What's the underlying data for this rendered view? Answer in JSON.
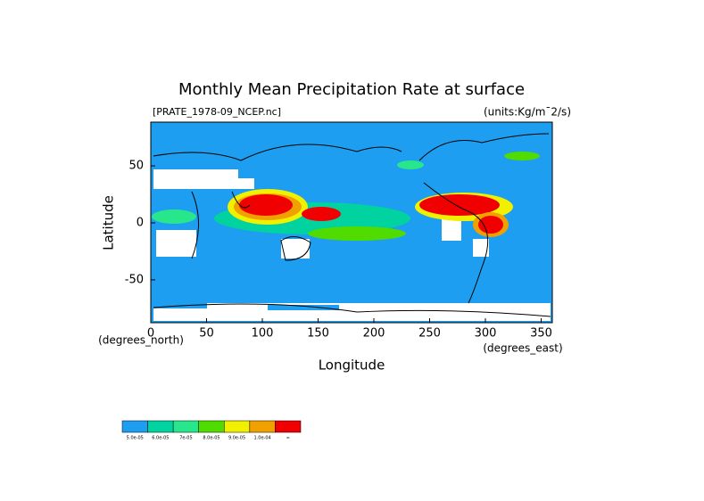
{
  "map": {
    "title": "Monthly Mean Precipitation Rate at surface",
    "file_label": "[PRATE_1978-09_NCEP.nc]",
    "units_label": "(units:Kg/m¯2/s)",
    "x_label": "Longitude",
    "y_label": "Latitude",
    "x_unit_label": "(degrees_east)",
    "y_unit_label": "(degrees_north)",
    "xlim": [
      0,
      360
    ],
    "xticks": [
      0,
      50,
      100,
      150,
      200,
      250,
      300,
      350
    ],
    "ylim": [
      -90,
      90
    ],
    "yticks": [
      -50,
      0,
      50
    ],
    "colorbar": {
      "colors": [
        "#1e9ef0",
        "#00d2a0",
        "#28e68c",
        "#50dc00",
        "#f0f000",
        "#f0a000",
        "#f00000"
      ],
      "labels": [
        "5.0e-05",
        "6.0e-05",
        "7e-05",
        "8.0e-05",
        "9.0e-05",
        "1.0e-04",
        "∞"
      ]
    }
  }
}
